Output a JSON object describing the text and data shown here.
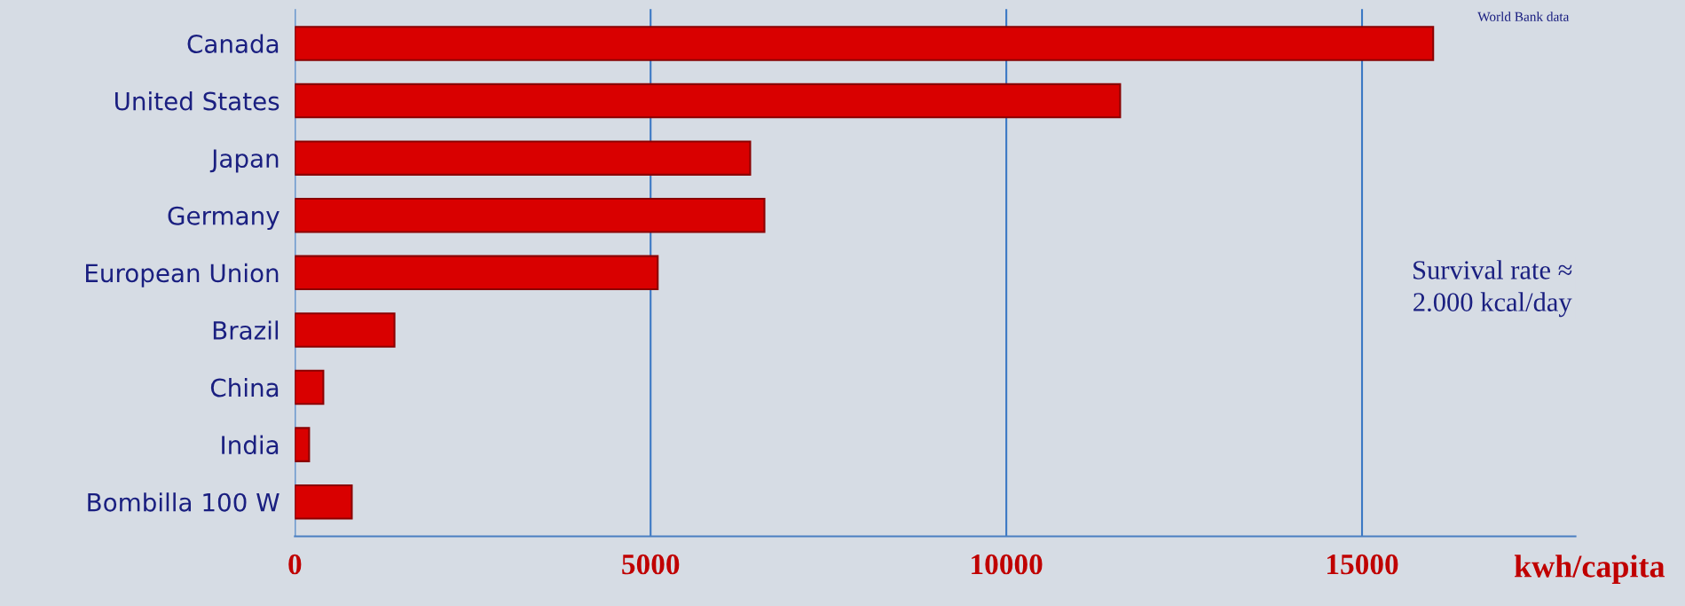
{
  "chart_data": {
    "type": "bar",
    "orientation": "horizontal",
    "categories": [
      "Canada",
      "United States",
      "Japan",
      "Germany",
      "European Union",
      "Brazil",
      "China",
      "India",
      "Bombilla 100 W"
    ],
    "values": [
      16000,
      11600,
      6400,
      6600,
      5100,
      1400,
      400,
      200,
      800
    ],
    "color": "#d90000",
    "xlabel": "kwh/capita",
    "xlim": [
      0,
      18000
    ],
    "xticks": [
      0,
      5000,
      10000,
      15000
    ],
    "grid": "x",
    "annotations": [
      "World Bank data",
      "Survival rate ≈\n2.000 kcal/day"
    ]
  }
}
